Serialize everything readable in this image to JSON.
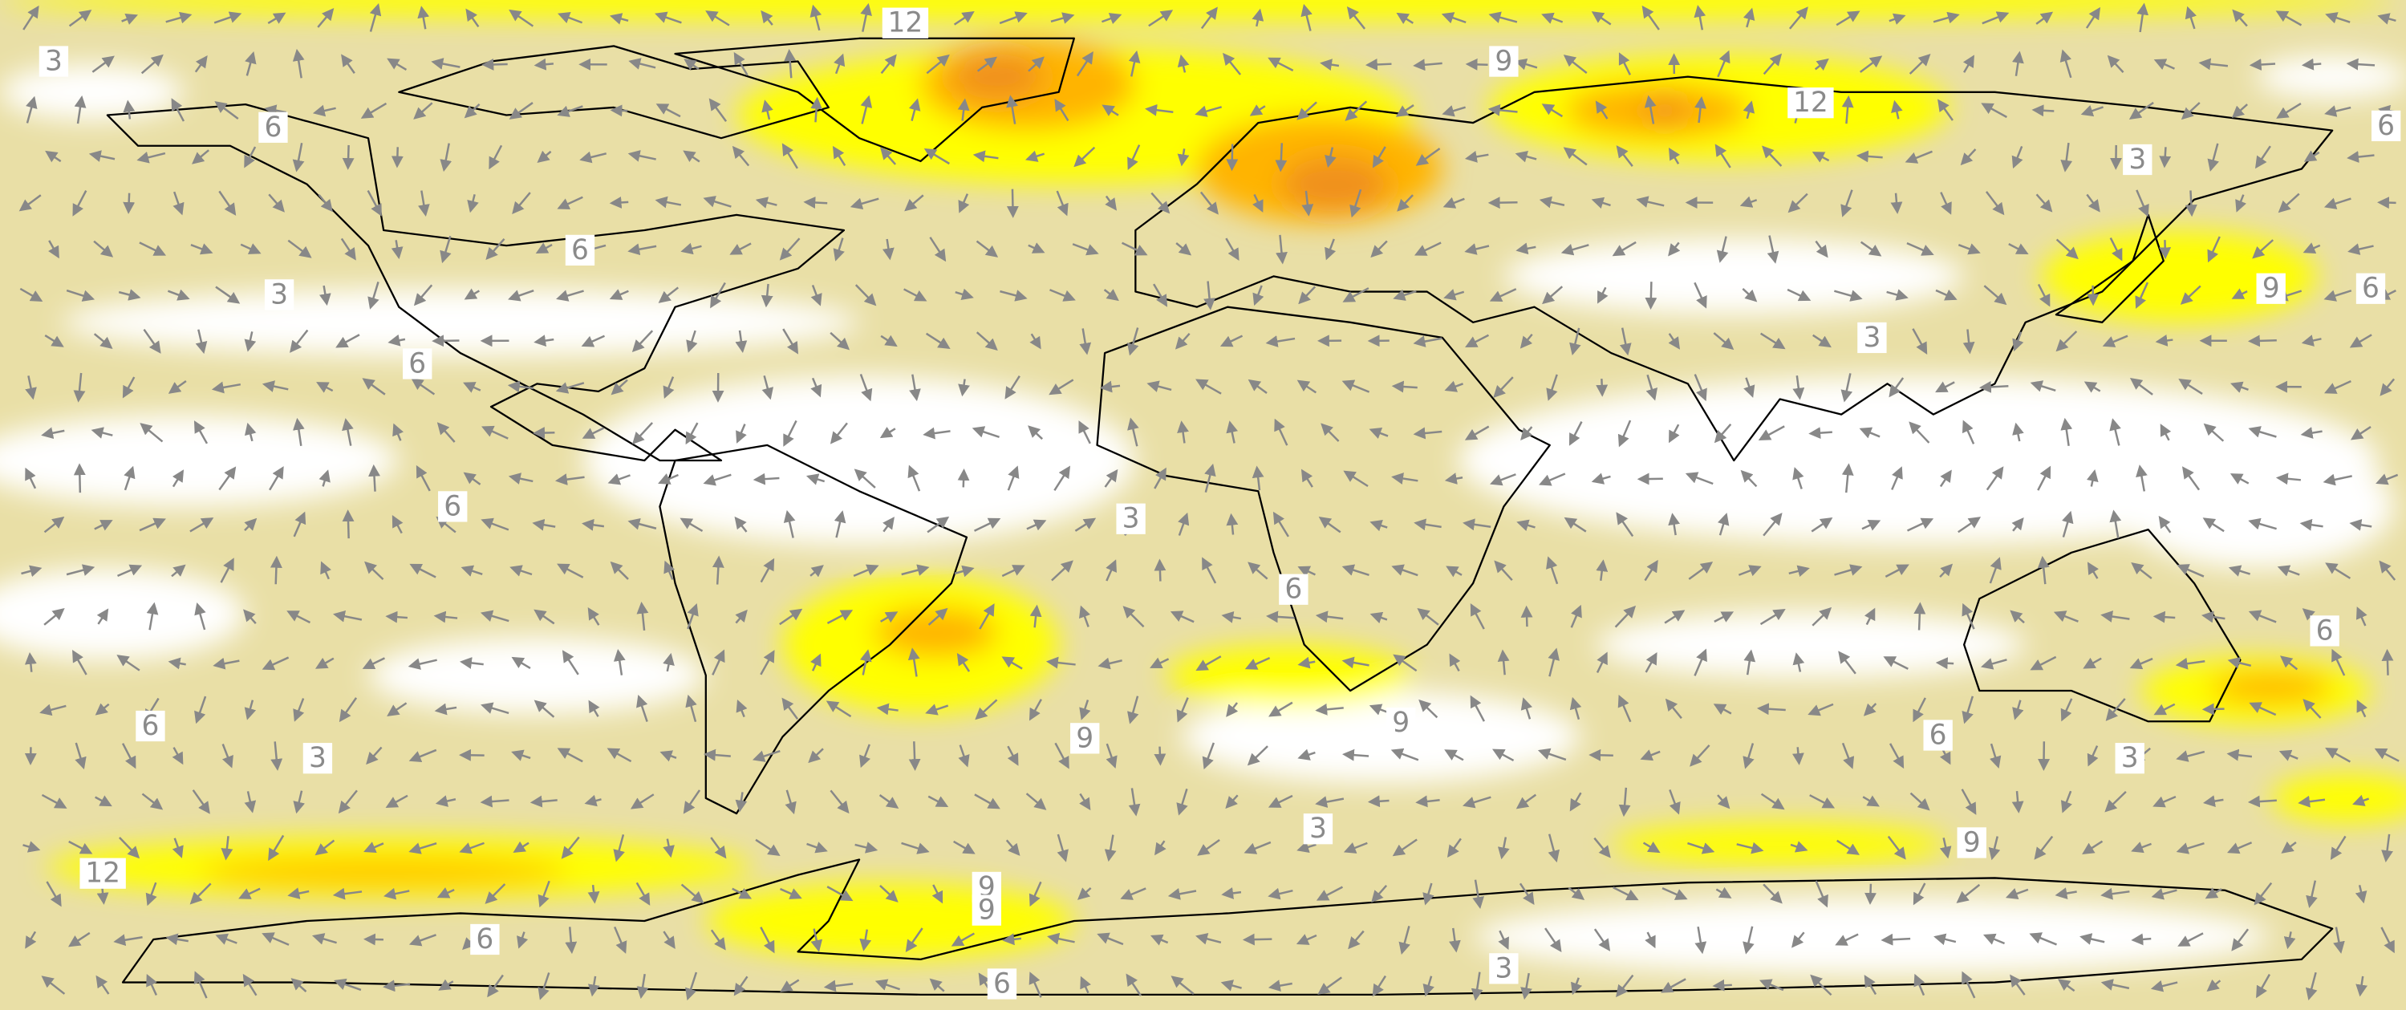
{
  "contour_labels": [
    "3",
    "12",
    "6",
    "9",
    "12",
    "6",
    "3",
    "6",
    "3",
    "9",
    "6",
    "3",
    "6",
    "6",
    "3",
    "6",
    "6",
    "6",
    "3",
    "9",
    "9",
    "6",
    "3",
    "3",
    "9",
    "12",
    "9",
    "9",
    "6",
    "6",
    "3"
  ]
}
